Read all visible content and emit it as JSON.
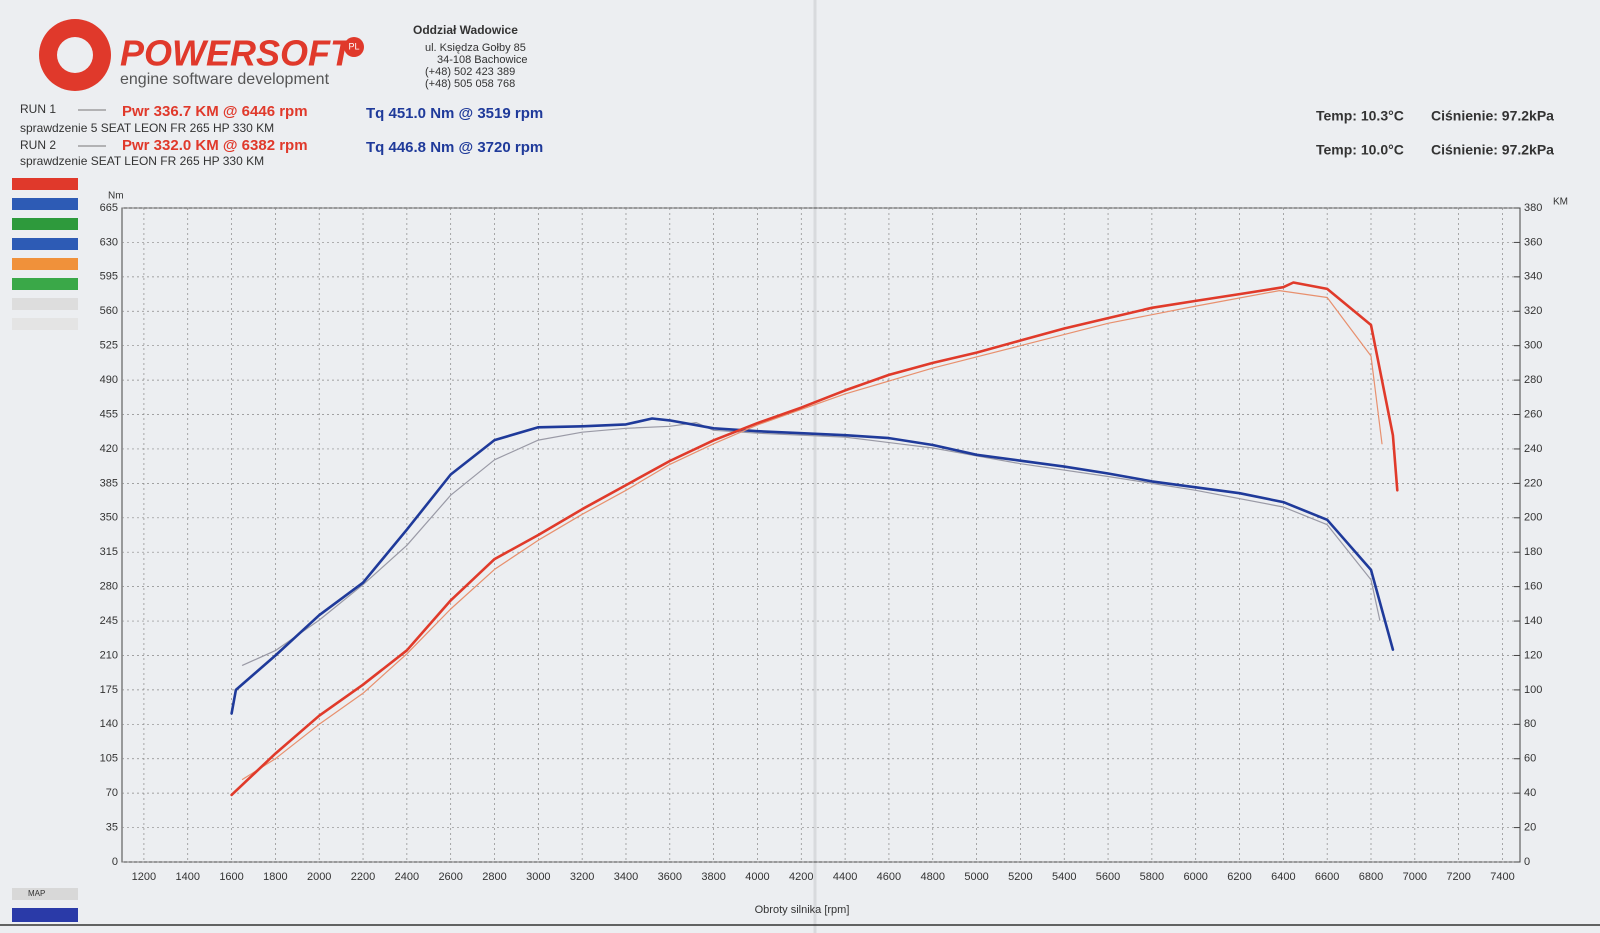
{
  "header": {
    "logo": "POWERSOFT",
    "logo_badge": "PL",
    "tagline": "engine software development",
    "branch": "Oddział Wadowice",
    "address": [
      "ul. Księdza Gołby 85",
      "34-108 Bachowice",
      "(+48) 502 423 389",
      "(+48) 505 058 768"
    ]
  },
  "runs": [
    {
      "label": "RUN 1",
      "power": "Pwr 336.7 KM @ 6446 rpm",
      "torque": "Tq 451.0 Nm @ 3519 rpm",
      "note": "sprawdzenie 5 SEAT LEON FR 265 HP 330 KM",
      "temp": "Temp: 10.3°C",
      "pressure": "Ciśnienie: 97.2kPa"
    },
    {
      "label": "RUN 2",
      "power": "Pwr 332.0 KM @ 6382 rpm",
      "torque": "Tq 446.8 Nm @ 3720 rpm",
      "note": "sprawdzenie SEAT LEON FR 265 HP 330 KM",
      "temp": "Temp: 10.0°C",
      "pressure": "Ciśnienie: 97.2kPa"
    }
  ],
  "side_label": "MAP",
  "chart_data": {
    "type": "line",
    "xlabel": "Obroty silnika [rpm]",
    "ylabel": "Nm",
    "y2label": "KM",
    "grid": true,
    "xlim": [
      1100,
      7480
    ],
    "xticks": [
      1200,
      1400,
      1600,
      1800,
      2000,
      2200,
      2400,
      2600,
      2800,
      3000,
      3200,
      3400,
      3600,
      3800,
      4000,
      4200,
      4400,
      4600,
      4800,
      5000,
      5200,
      5400,
      5600,
      5800,
      6000,
      6200,
      6400,
      6600,
      6800,
      7000,
      7200,
      7400
    ],
    "ylim": [
      0,
      665
    ],
    "yticks": [
      0,
      35,
      70,
      105,
      140,
      175,
      210,
      245,
      280,
      315,
      350,
      385,
      420,
      455,
      490,
      525,
      560,
      595,
      630,
      665
    ],
    "y2lim": [
      0,
      380
    ],
    "y2ticks": [
      0,
      20,
      40,
      60,
      80,
      100,
      120,
      140,
      160,
      180,
      200,
      220,
      240,
      260,
      280,
      300,
      320,
      340,
      360,
      380
    ],
    "series": [
      {
        "color": "#9a9aa6",
        "line_width": 1.2,
        "x": [
          1650,
          1800,
          2000,
          2200,
          2400,
          2600,
          2800,
          3000,
          3200,
          3400,
          3600,
          3720,
          3800,
          4000,
          4400,
          4800,
          5200,
          5600,
          6000,
          6400,
          6600,
          6800,
          6840
        ],
        "values": [
          200,
          215,
          246,
          282,
          322,
          373,
          409,
          429,
          437,
          441,
          443,
          446.8,
          439,
          436,
          432,
          421,
          405,
          392,
          378,
          361,
          343,
          287,
          246
        ]
      },
      {
        "color": "#1f3a9a",
        "line_width": 2.6,
        "x": [
          1600,
          1620,
          1800,
          2000,
          2200,
          2400,
          2600,
          2800,
          3000,
          3200,
          3400,
          3519,
          3600,
          3800,
          4000,
          4200,
          4400,
          4600,
          4800,
          5000,
          5200,
          5400,
          5600,
          5800,
          6000,
          6200,
          6400,
          6600,
          6800,
          6900
        ],
        "values": [
          151,
          175,
          210,
          251,
          284,
          338,
          394,
          429,
          442,
          443,
          445,
          451,
          449,
          441,
          438,
          436,
          434,
          431,
          424,
          414,
          408,
          402,
          395,
          387,
          381,
          375,
          366,
          348,
          297,
          216
        ]
      },
      {
        "color": "#e8906e",
        "line_width": 1.2,
        "axis": "y2",
        "x": [
          1650,
          1800,
          2000,
          2200,
          2400,
          2600,
          2800,
          3000,
          3200,
          3400,
          3600,
          3800,
          4000,
          4400,
          4800,
          5200,
          5600,
          6000,
          6382,
          6600,
          6800,
          6850
        ],
        "values": [
          48,
          60,
          80,
          98,
          121,
          147,
          170,
          187,
          202,
          216,
          231,
          243,
          254,
          272,
          287,
          300,
          313,
          323,
          332,
          328,
          294,
          243
        ]
      },
      {
        "color": "#e03a2a",
        "line_width": 2.6,
        "axis": "y2",
        "x": [
          1600,
          1800,
          2000,
          2200,
          2400,
          2600,
          2800,
          3000,
          3200,
          3400,
          3600,
          3800,
          4000,
          4200,
          4400,
          4600,
          4800,
          5000,
          5200,
          5400,
          5600,
          5800,
          6000,
          6200,
          6400,
          6446,
          6600,
          6800,
          6900,
          6920
        ],
        "values": [
          39,
          63,
          85,
          103,
          123,
          152,
          176,
          190,
          205,
          219,
          233,
          245,
          255,
          264,
          274,
          283,
          290,
          296,
          303,
          310,
          316,
          322,
          326,
          330,
          334,
          336.7,
          333,
          312,
          248,
          216
        ]
      }
    ]
  }
}
